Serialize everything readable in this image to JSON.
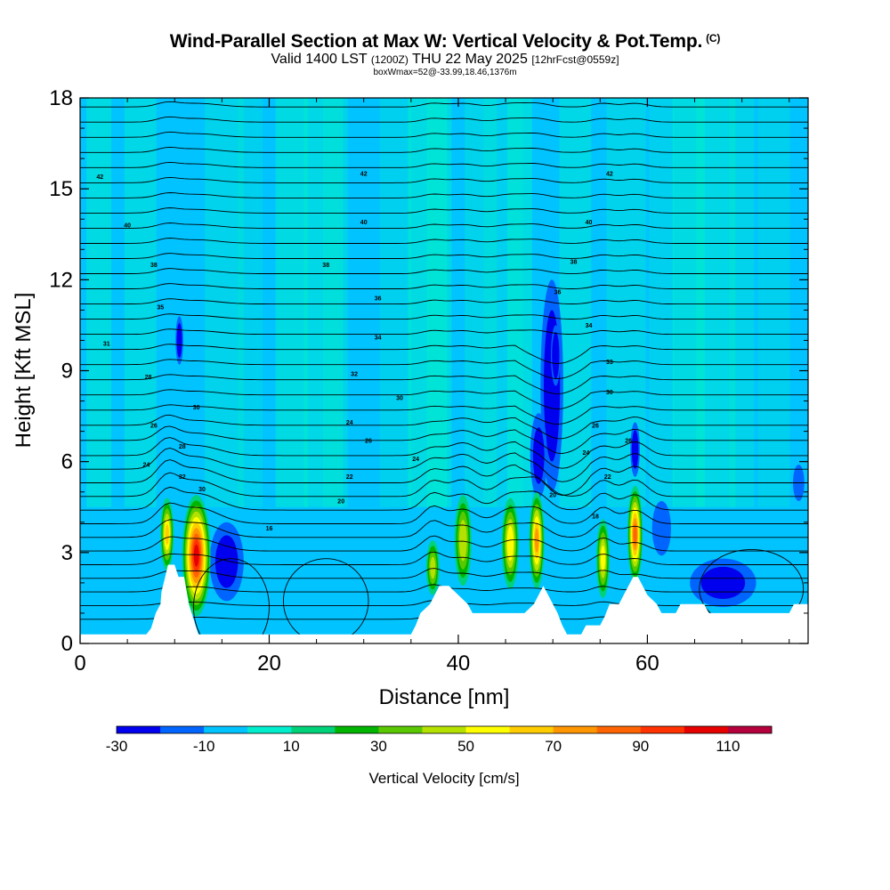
{
  "title": {
    "main": "Wind-Parallel Section at Max W: Vertical Velocity & Pot.Temp.",
    "copyright": "(C)",
    "valid_prefix": "Valid 1400 LST",
    "valid_utc": "(1200Z)",
    "valid_date": "THU 22 May 2025",
    "forecast": "[12hrFcst@0559z]",
    "box_info": "boxWmax=52@-33.99,18.46,1376m"
  },
  "colors": {
    "background_w": "#00c3ff",
    "terrain": "#ffffff",
    "contour": "#000000"
  },
  "chart_data": {
    "type": "heatmap",
    "title": "Wind-Parallel Section at Max W: Vertical Velocity & Pot.Temp.",
    "xlabel": "Distance [nm]",
    "ylabel": "Height [Kft MSL]",
    "xlim": [
      0,
      77
    ],
    "ylim": [
      0,
      18
    ],
    "x_ticks": [
      0,
      20,
      40,
      60
    ],
    "y_ticks": [
      0,
      3,
      6,
      9,
      12,
      15,
      18
    ],
    "colorbar": {
      "label": "Vertical Velocity [cm/s]",
      "tick_labels": [
        "-30",
        "-10",
        "10",
        "30",
        "50",
        "70",
        "90",
        "110"
      ],
      "bounds": [
        -30,
        -20,
        -10,
        0,
        10,
        20,
        30,
        40,
        50,
        60,
        70,
        80,
        90,
        100,
        110,
        120
      ],
      "colors": [
        "#0000ee",
        "#0064ff",
        "#00c3ff",
        "#00eecc",
        "#00d27a",
        "#00b400",
        "#5ac800",
        "#b4e100",
        "#ffff00",
        "#ffcc00",
        "#ff9600",
        "#ff6400",
        "#ff3200",
        "#e60000",
        "#b4003c"
      ]
    },
    "terrain_profile": [
      [
        0,
        0.3
      ],
      [
        7,
        0.3
      ],
      [
        7.5,
        0.5
      ],
      [
        8,
        1
      ],
      [
        8.5,
        1.3
      ],
      [
        8.6,
        1.7
      ],
      [
        9,
        2.2
      ],
      [
        9.3,
        2.6
      ],
      [
        10,
        2.6
      ],
      [
        10.4,
        2.2
      ],
      [
        11,
        2.2
      ],
      [
        11.5,
        1.3
      ],
      [
        12,
        0.8
      ],
      [
        12.5,
        0.3
      ],
      [
        35,
        0.3
      ],
      [
        35.5,
        0.6
      ],
      [
        36,
        1
      ],
      [
        37,
        1.3
      ],
      [
        37.5,
        1.6
      ],
      [
        38,
        1.9
      ],
      [
        39,
        1.9
      ],
      [
        40,
        1.6
      ],
      [
        41,
        1.3
      ],
      [
        41.5,
        1
      ],
      [
        47,
        1
      ],
      [
        48,
        1.3
      ],
      [
        48.5,
        1.6
      ],
      [
        49,
        1.9
      ],
      [
        49.5,
        1.6
      ],
      [
        50,
        1.3
      ],
      [
        50.5,
        1
      ],
      [
        51,
        0.6
      ],
      [
        51.5,
        0.3
      ],
      [
        53,
        0.3
      ],
      [
        53.5,
        0.6
      ],
      [
        55,
        0.6
      ],
      [
        55.5,
        0.9
      ],
      [
        56,
        1.3
      ],
      [
        57,
        1.3
      ],
      [
        57.5,
        1.6
      ],
      [
        58,
        1.9
      ],
      [
        58.5,
        2.2
      ],
      [
        59,
        2.2
      ],
      [
        59.5,
        1.9
      ],
      [
        60,
        1.6
      ],
      [
        61,
        1.3
      ],
      [
        61.5,
        1
      ],
      [
        63,
        1
      ],
      [
        63.5,
        1.3
      ],
      [
        65,
        1.3
      ],
      [
        66,
        1.3
      ],
      [
        66.5,
        1
      ],
      [
        75,
        1
      ],
      [
        75.5,
        1.3
      ],
      [
        77,
        1.3
      ]
    ],
    "updraft_cores": [
      {
        "x": 9.2,
        "z": 3.6,
        "rx": 0.7,
        "rz": 1.2,
        "peak": 60
      },
      {
        "x": 12.3,
        "z": 2.9,
        "rx": 1.5,
        "rz": 2.0,
        "peak": 100
      },
      {
        "x": 37.3,
        "z": 2.5,
        "rx": 0.7,
        "rz": 0.9,
        "peak": 40
      },
      {
        "x": 40.5,
        "z": 3.4,
        "rx": 0.9,
        "rz": 1.5,
        "peak": 45
      },
      {
        "x": 45.5,
        "z": 3.3,
        "rx": 0.9,
        "rz": 1.5,
        "peak": 55
      },
      {
        "x": 48.3,
        "z": 3.4,
        "rx": 0.8,
        "rz": 1.6,
        "peak": 70
      },
      {
        "x": 55.3,
        "z": 2.8,
        "rx": 0.7,
        "rz": 1.3,
        "peak": 50
      },
      {
        "x": 58.7,
        "z": 3.6,
        "rx": 0.8,
        "rz": 1.6,
        "peak": 80
      }
    ],
    "downdraft_cores": [
      {
        "x": 15.5,
        "z": 2.7,
        "rx": 1.8,
        "rz": 1.3,
        "peak": -20
      },
      {
        "x": 10.5,
        "z": 10.0,
        "rx": 0.4,
        "rz": 0.8,
        "peak": -25
      },
      {
        "x": 49.9,
        "z": 8.5,
        "rx": 1.2,
        "rz": 3.5,
        "peak": -25
      },
      {
        "x": 50.3,
        "z": 9.5,
        "rx": 0.5,
        "rz": 1.0,
        "peak": -35
      },
      {
        "x": 48.5,
        "z": 6.2,
        "rx": 0.9,
        "rz": 1.4,
        "peak": -20
      },
      {
        "x": 58.7,
        "z": 6.4,
        "rx": 0.5,
        "rz": 0.9,
        "peak": -25
      },
      {
        "x": 68.0,
        "z": 2.0,
        "rx": 3.5,
        "rz": 0.8,
        "peak": -20
      },
      {
        "x": 61.5,
        "z": 3.8,
        "rx": 1.0,
        "rz": 0.9,
        "peak": -15
      },
      {
        "x": 76.0,
        "z": 5.3,
        "rx": 0.6,
        "rz": 0.6,
        "peak": -15
      }
    ],
    "contour_labels": [
      {
        "text": "24",
        "x": 7.0,
        "z": 5.9
      },
      {
        "text": "26",
        "x": 7.8,
        "z": 7.2
      },
      {
        "text": "28",
        "x": 7.2,
        "z": 8.8
      },
      {
        "text": "31",
        "x": 2.8,
        "z": 9.9
      },
      {
        "text": "35",
        "x": 8.5,
        "z": 11.1
      },
      {
        "text": "38",
        "x": 7.8,
        "z": 12.5
      },
      {
        "text": "40",
        "x": 5.0,
        "z": 13.8
      },
      {
        "text": "42",
        "x": 2.1,
        "z": 15.4
      },
      {
        "text": "32",
        "x": 10.8,
        "z": 5.5
      },
      {
        "text": "30",
        "x": 12.9,
        "z": 5.1
      },
      {
        "text": "28",
        "x": 10.8,
        "z": 6.5
      },
      {
        "text": "30",
        "x": 12.3,
        "z": 7.8
      },
      {
        "text": "16",
        "x": 20.0,
        "z": 3.8
      },
      {
        "text": "20",
        "x": 27.6,
        "z": 4.7
      },
      {
        "text": "22",
        "x": 28.5,
        "z": 5.5
      },
      {
        "text": "24",
        "x": 28.5,
        "z": 7.3
      },
      {
        "text": "26",
        "x": 30.5,
        "z": 6.7
      },
      {
        "text": "24",
        "x": 35.5,
        "z": 6.1
      },
      {
        "text": "30",
        "x": 33.8,
        "z": 8.1
      },
      {
        "text": "32",
        "x": 29.0,
        "z": 8.9
      },
      {
        "text": "34",
        "x": 31.5,
        "z": 10.1
      },
      {
        "text": "36",
        "x": 31.5,
        "z": 11.4
      },
      {
        "text": "38",
        "x": 26.0,
        "z": 12.5
      },
      {
        "text": "40",
        "x": 30.0,
        "z": 13.9
      },
      {
        "text": "42",
        "x": 30.0,
        "z": 15.5
      },
      {
        "text": "42",
        "x": 56.0,
        "z": 15.5
      },
      {
        "text": "40",
        "x": 53.8,
        "z": 13.9
      },
      {
        "text": "38",
        "x": 52.2,
        "z": 12.6
      },
      {
        "text": "36",
        "x": 50.5,
        "z": 11.6
      },
      {
        "text": "34",
        "x": 53.8,
        "z": 10.5
      },
      {
        "text": "33",
        "x": 56.0,
        "z": 9.3
      },
      {
        "text": "30",
        "x": 56.0,
        "z": 8.3
      },
      {
        "text": "26",
        "x": 54.5,
        "z": 7.2
      },
      {
        "text": "24",
        "x": 53.5,
        "z": 6.3
      },
      {
        "text": "22",
        "x": 55.8,
        "z": 5.5
      },
      {
        "text": "26",
        "x": 58.0,
        "z": 6.7
      },
      {
        "text": "20",
        "x": 50.0,
        "z": 4.9
      },
      {
        "text": "18",
        "x": 54.5,
        "z": 4.2
      }
    ]
  }
}
